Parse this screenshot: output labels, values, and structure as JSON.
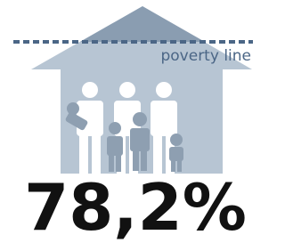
{
  "annotation": "poverty line",
  "headline": "78,2%"
}
